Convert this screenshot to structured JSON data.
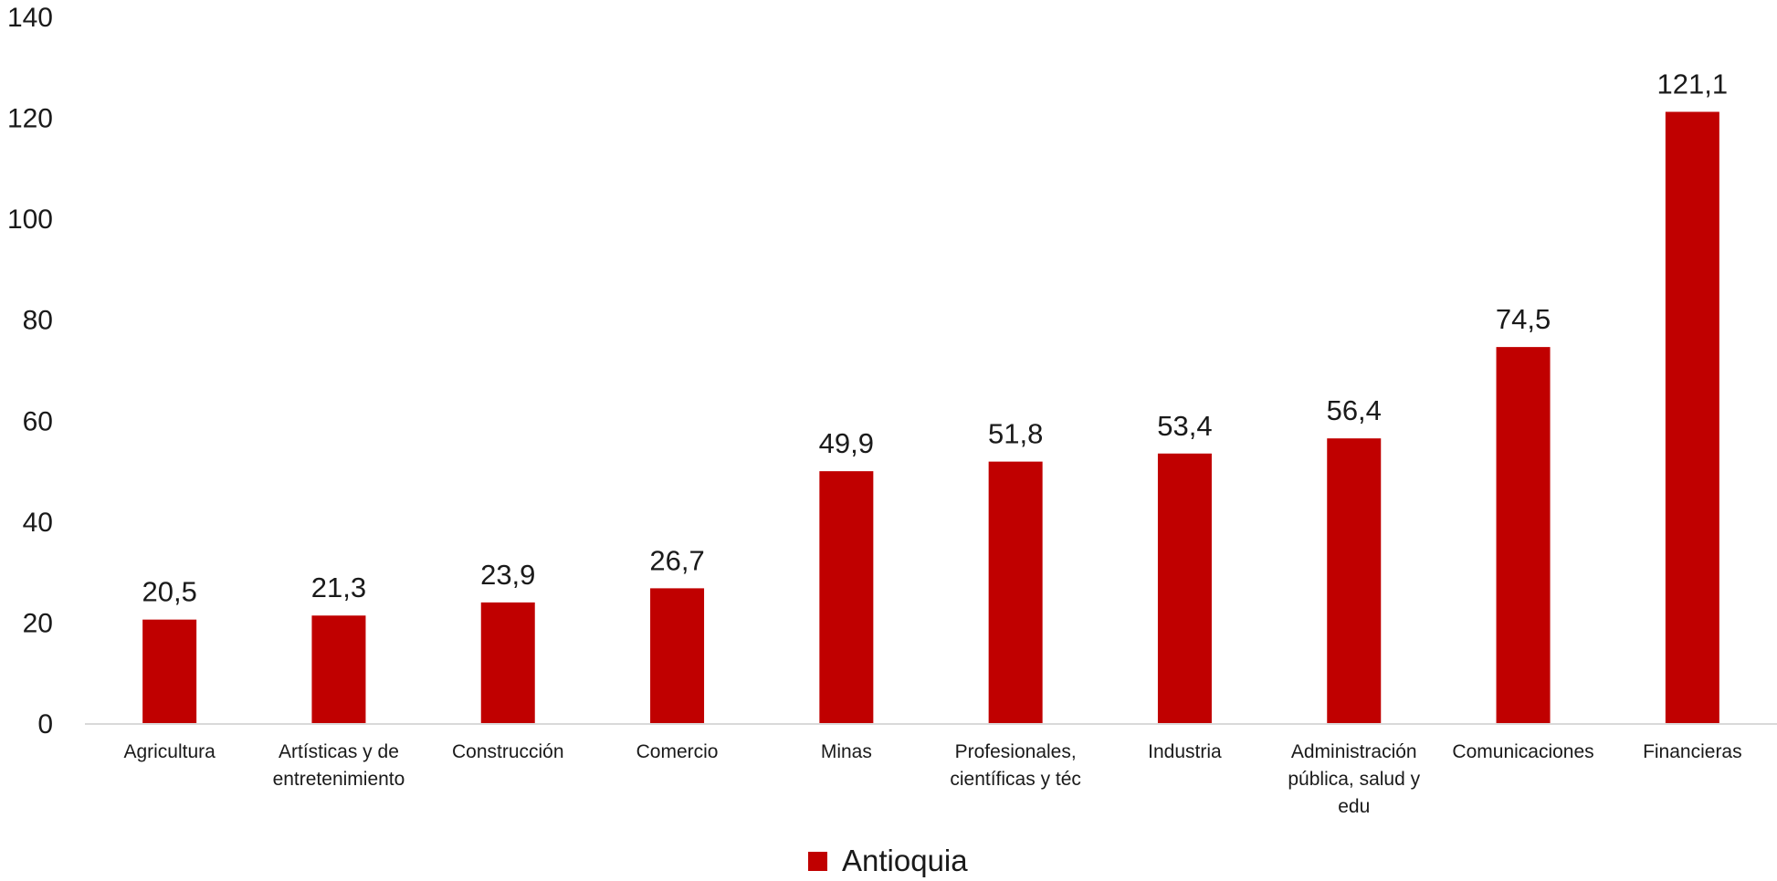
{
  "chart_data": {
    "type": "bar",
    "title": "",
    "xlabel": "",
    "ylabel": "",
    "ylim": [
      0,
      140
    ],
    "yticks": [
      0,
      20,
      40,
      60,
      80,
      100,
      120,
      140
    ],
    "categories": [
      [
        "Agricultura"
      ],
      [
        "Artísticas y de",
        "entretenimiento"
      ],
      [
        "Construcción"
      ],
      [
        "Comercio"
      ],
      [
        "Minas"
      ],
      [
        "Profesionales,",
        "científicas y téc"
      ],
      [
        "Industria"
      ],
      [
        "Administración",
        "pública, salud y",
        "edu"
      ],
      [
        "Comunicaciones"
      ],
      [
        "Financieras"
      ]
    ],
    "series": [
      {
        "name": "Antioquia",
        "color": "#c00000",
        "values": [
          20.5,
          21.3,
          23.9,
          26.7,
          49.9,
          51.8,
          53.4,
          56.4,
          74.5,
          121.1
        ],
        "labels": [
          "20,5",
          "21,3",
          "23,9",
          "26,7",
          "49,9",
          "51,8",
          "53,4",
          "56,4",
          "74,5",
          "121,1"
        ]
      }
    ],
    "grid": false,
    "legend": "bottom-center"
  }
}
